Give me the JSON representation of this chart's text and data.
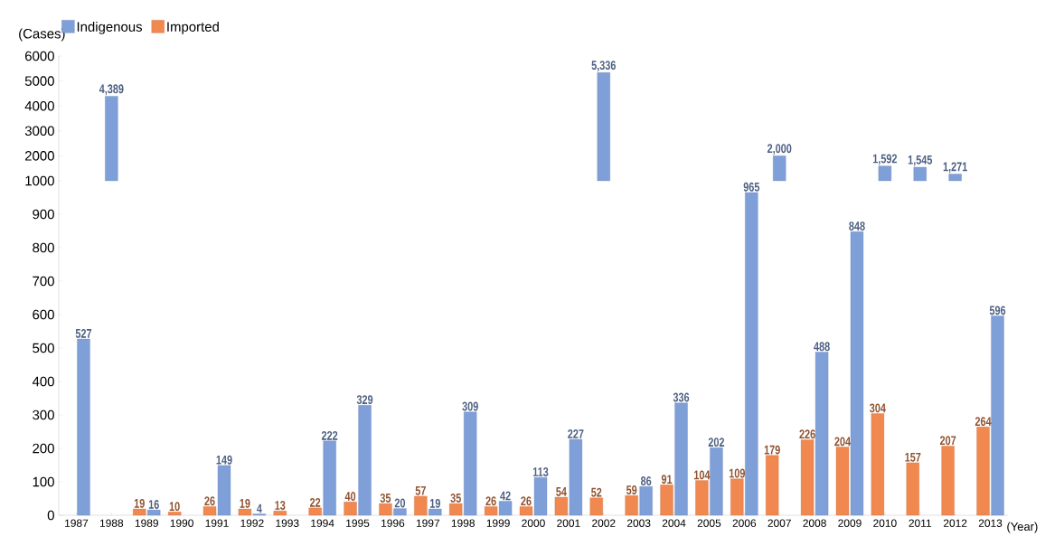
{
  "chart_data": [
    {
      "type": "bar",
      "ylabel": "(Cases)",
      "categories": [
        "1987",
        "1988",
        "1989",
        "1990",
        "1991",
        "1992",
        "1993",
        "1994",
        "1995",
        "1996",
        "1997",
        "1998",
        "1999",
        "2000",
        "2001",
        "2002",
        "2003",
        "2004",
        "2005",
        "2006",
        "2007",
        "2008",
        "2009",
        "2010",
        "2011",
        "2012",
        "2013"
      ],
      "ylim": [
        1000,
        6000
      ],
      "yticks": [
        2000,
        3000,
        4000,
        5000,
        6000
      ],
      "tick_labels": "y",
      "series": [
        {
          "color": "#7f9fd8",
          "values": [
            null,
            4389,
            null,
            null,
            null,
            null,
            null,
            null,
            null,
            null,
            null,
            null,
            null,
            null,
            null,
            5336,
            null,
            null,
            null,
            null,
            2000,
            null,
            null,
            1592,
            1545,
            1271,
            null
          ],
          "value_labels": [
            null,
            "4,389",
            null,
            null,
            null,
            null,
            null,
            null,
            null,
            null,
            null,
            null,
            null,
            null,
            null,
            "5,336",
            null,
            null,
            null,
            null,
            "2,000",
            null,
            null,
            "1,592",
            "1,545",
            "1,271",
            null
          ]
        }
      ]
    },
    {
      "type": "bar",
      "xlabel": "(Year)",
      "categories": [
        "1987",
        "1988",
        "1989",
        "1990",
        "1991",
        "1992",
        "1993",
        "1994",
        "1995",
        "1996",
        "1997",
        "1998",
        "1999",
        "2000",
        "2001",
        "2002",
        "2003",
        "2004",
        "2005",
        "2006",
        "2007",
        "2008",
        "2009",
        "2010",
        "2011",
        "2012",
        "2013"
      ],
      "ylim": [
        0,
        1000
      ],
      "yticks": [
        0,
        100,
        200,
        300,
        400,
        500,
        600,
        700,
        800,
        900,
        1000
      ],
      "legend": "top left",
      "series": [
        {
          "name": "Indigenous",
          "color": "#7f9fd8",
          "values": [
            527,
            null,
            16,
            null,
            149,
            4,
            null,
            222,
            329,
            20,
            19,
            309,
            42,
            113,
            227,
            null,
            86,
            336,
            202,
            965,
            null,
            488,
            848,
            null,
            null,
            null,
            596
          ],
          "value_labels": [
            "527",
            null,
            "16",
            null,
            "149",
            "4",
            null,
            "222",
            "329",
            "20",
            "19",
            "309",
            "42",
            "113",
            "227",
            null,
            "86",
            "336",
            "202",
            "965",
            null,
            "488",
            "848",
            null,
            null,
            null,
            "596"
          ]
        },
        {
          "name": "Imported",
          "color": "#f08850",
          "values": [
            null,
            null,
            19,
            10,
            26,
            19,
            13,
            22,
            40,
            35,
            57,
            35,
            26,
            26,
            54,
            52,
            59,
            91,
            104,
            109,
            179,
            226,
            204,
            304,
            157,
            207,
            264
          ],
          "value_labels": [
            null,
            null,
            "19",
            "10",
            "26",
            "19",
            "13",
            "22",
            "40",
            "35",
            "57",
            "35",
            "26",
            "26",
            "54",
            "52",
            "59",
            "91",
            "104",
            "109",
            "179",
            "226",
            "204",
            "304",
            "157",
            "207",
            "264"
          ]
        }
      ]
    }
  ]
}
